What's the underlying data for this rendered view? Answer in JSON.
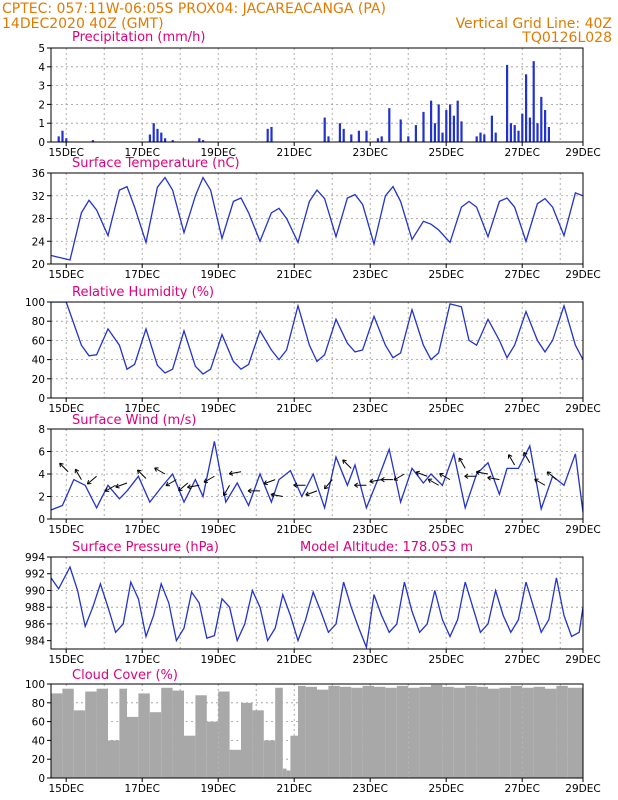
{
  "header": {
    "line1": "CPTEC:   057:11W-06:05S   PROX04: JACAREACANGA (PA)",
    "line2_left": "14DEC2020 40Z (GMT)",
    "line2_right": "Vertical Grid Line: 40Z",
    "line3_right": "TQ0126L028"
  },
  "x_tick_labels": [
    "15DEC",
    "17DEC",
    "19DEC",
    "21DEC",
    "23DEC",
    "25DEC",
    "27DEC",
    "29DEC"
  ],
  "colors": {
    "line": "#2233cc",
    "cloud": "#a8a8a8",
    "title": "#e0007a",
    "header": "#e07b00"
  },
  "chart_data": [
    {
      "type": "bar",
      "title": "Precipitation (mm/h)",
      "ylim": [
        0,
        5
      ],
      "yticks": [
        "0",
        "1",
        "2",
        "3",
        "4",
        "5"
      ],
      "x_unit": "days from 14DEC2020",
      "x": [
        0.2,
        0.3,
        0.4,
        1.1,
        2.6,
        2.7,
        2.8,
        2.9,
        3.0,
        3.2,
        3.9,
        4.0,
        5.7,
        5.8,
        7.2,
        7.3,
        7.6,
        7.7,
        7.9,
        8.1,
        8.3,
        8.6,
        8.7,
        8.9,
        9.2,
        9.4,
        9.6,
        9.8,
        10.0,
        10.1,
        10.2,
        10.3,
        10.4,
        10.5,
        10.6,
        10.7,
        10.8,
        11.2,
        11.3,
        11.4,
        11.6,
        11.7,
        12.0,
        12.1,
        12.2,
        12.3,
        12.4,
        12.5,
        12.6,
        12.7,
        12.8,
        12.9,
        13.0,
        13.1
      ],
      "values": [
        0.3,
        0.6,
        0.2,
        0.1,
        0.4,
        1.0,
        0.7,
        0.5,
        0.2,
        0.1,
        0.2,
        0.1,
        0.7,
        0.8,
        1.3,
        0.3,
        1.0,
        0.7,
        0.4,
        0.6,
        0.6,
        0.2,
        0.3,
        1.8,
        1.2,
        0.3,
        0.9,
        1.6,
        2.2,
        1.0,
        2.0,
        0.5,
        1.7,
        2.0,
        1.4,
        2.2,
        1.1,
        0.3,
        0.5,
        0.4,
        1.4,
        0.5,
        4.1,
        1.0,
        0.9,
        0.6,
        1.5,
        3.6,
        1.3,
        4.3,
        1.0,
        2.4,
        1.7,
        0.8
      ]
    },
    {
      "type": "line",
      "title": "Surface Temperature (nC)",
      "ylim": [
        20,
        36
      ],
      "yticks": [
        "20",
        "24",
        "28",
        "32",
        "36"
      ],
      "x_unit": "days from 14DEC2020",
      "x": [
        0.0,
        0.5,
        0.8,
        1.0,
        1.2,
        1.5,
        1.8,
        2.0,
        2.2,
        2.5,
        2.8,
        3.0,
        3.2,
        3.5,
        3.8,
        4.0,
        4.2,
        4.5,
        4.8,
        5.0,
        5.2,
        5.5,
        5.8,
        6.0,
        6.2,
        6.5,
        6.8,
        7.0,
        7.2,
        7.5,
        7.8,
        8.0,
        8.2,
        8.5,
        8.8,
        9.0,
        9.2,
        9.5,
        9.8,
        10.0,
        10.2,
        10.5,
        10.8,
        11.0,
        11.2,
        11.5,
        11.8,
        12.0,
        12.2,
        12.5,
        12.8,
        13.0,
        13.2,
        13.5,
        13.8,
        14.0
      ],
      "values": [
        21.5,
        20.7,
        29.0,
        31.2,
        29.5,
        25.0,
        33.0,
        33.6,
        30.0,
        23.8,
        33.5,
        35.2,
        33.0,
        25.5,
        32.0,
        35.2,
        33.0,
        24.5,
        31.0,
        31.6,
        29.0,
        24.0,
        29.0,
        29.8,
        28.0,
        23.8,
        31.0,
        33.0,
        31.5,
        24.8,
        31.6,
        32.2,
        30.5,
        23.5,
        32.0,
        33.6,
        31.0,
        24.3,
        27.5,
        27.0,
        26.0,
        23.8,
        30.0,
        31.0,
        30.0,
        24.8,
        31.0,
        31.6,
        30.0,
        24.0,
        30.6,
        31.5,
        30.0,
        25.0,
        32.5,
        32.0
      ]
    },
    {
      "type": "line",
      "title": "Relative Humidity (%)",
      "ylim": [
        0,
        100
      ],
      "yticks": [
        "0",
        "20",
        "40",
        "60",
        "80",
        "100"
      ],
      "x_unit": "days from 14DEC2020",
      "x": [
        0.0,
        0.4,
        0.8,
        1.0,
        1.2,
        1.5,
        1.8,
        2.0,
        2.2,
        2.5,
        2.8,
        3.0,
        3.2,
        3.5,
        3.8,
        4.0,
        4.2,
        4.5,
        4.8,
        5.0,
        5.2,
        5.5,
        5.8,
        6.0,
        6.2,
        6.5,
        6.8,
        7.0,
        7.2,
        7.5,
        7.8,
        8.0,
        8.2,
        8.5,
        8.8,
        9.0,
        9.2,
        9.5,
        9.8,
        10.0,
        10.2,
        10.5,
        10.8,
        11.0,
        11.2,
        11.5,
        11.8,
        12.0,
        12.2,
        12.5,
        12.8,
        13.0,
        13.2,
        13.5,
        13.8,
        14.0
      ],
      "values": [
        100,
        100,
        55,
        44,
        45,
        72,
        55,
        30,
        35,
        72,
        34,
        26,
        30,
        70,
        33,
        25,
        30,
        66,
        38,
        30,
        35,
        70,
        50,
        40,
        50,
        96,
        55,
        38,
        45,
        82,
        57,
        48,
        50,
        85,
        55,
        42,
        47,
        92,
        55,
        40,
        47,
        98,
        95,
        60,
        55,
        82,
        60,
        42,
        55,
        90,
        60,
        48,
        60,
        96,
        55,
        40
      ]
    },
    {
      "type": "line",
      "title": "Surface Wind (m/s)",
      "ylim": [
        0,
        8
      ],
      "yticks": [
        "0",
        "2",
        "4",
        "6",
        "8"
      ],
      "x_unit": "days from 14DEC2020",
      "x": [
        0.0,
        0.3,
        0.6,
        0.9,
        1.2,
        1.5,
        1.8,
        2.0,
        2.3,
        2.6,
        2.9,
        3.2,
        3.5,
        3.8,
        4.0,
        4.3,
        4.6,
        4.9,
        5.2,
        5.5,
        5.8,
        6.0,
        6.3,
        6.6,
        6.9,
        7.2,
        7.5,
        7.8,
        8.0,
        8.3,
        8.6,
        8.9,
        9.2,
        9.5,
        9.8,
        10.0,
        10.3,
        10.6,
        10.9,
        11.2,
        11.5,
        11.8,
        12.0,
        12.3,
        12.6,
        12.9,
        13.2,
        13.5,
        13.8,
        14.0
      ],
      "values": [
        0.8,
        1.2,
        3.5,
        3.0,
        1.0,
        3.0,
        1.8,
        2.5,
        3.8,
        1.5,
        2.8,
        4.0,
        1.5,
        3.5,
        2.0,
        6.9,
        1.5,
        3.2,
        1.2,
        4.0,
        1.5,
        3.5,
        4.3,
        2.0,
        4.0,
        1.0,
        5.5,
        3.0,
        4.8,
        1.0,
        3.5,
        6.2,
        1.5,
        4.5,
        3.2,
        4.0,
        3.0,
        5.8,
        1.0,
        4.0,
        5.0,
        2.2,
        4.5,
        4.5,
        6.5,
        0.9,
        3.8,
        3.0,
        5.8,
        0.6
      ],
      "arrows_x": [
        0.45,
        0.8,
        1.2,
        1.7,
        2.0,
        2.5,
        3.0,
        3.3,
        3.6,
        3.9,
        4.3,
        4.7,
        5.0,
        5.5,
        5.9,
        6.1,
        6.7,
        7.0,
        7.4,
        7.9,
        8.3,
        8.7,
        9.0,
        9.3,
        9.9,
        10.2,
        10.5,
        10.9,
        11.2,
        11.5,
        11.8,
        12.2,
        12.6,
        13.0,
        13.3
      ],
      "arrows_speed": [
        4.2,
        3.5,
        3.8,
        3.0,
        3.2,
        3.6,
        4.0,
        3.5,
        3.2,
        3.0,
        3.8,
        3.0,
        4.2,
        2.5,
        3.5,
        2.0,
        3.0,
        2.5,
        3.5,
        4.5,
        3.0,
        3.5,
        3.5,
        4.0,
        3.8,
        3.0,
        3.5,
        4.5,
        3.8,
        4.0,
        3.5,
        4.8,
        5.0,
        3.0,
        3.5
      ],
      "arrows_dir_deg": [
        135,
        120,
        220,
        210,
        200,
        135,
        150,
        210,
        220,
        190,
        210,
        240,
        190,
        180,
        200,
        170,
        180,
        200,
        230,
        135,
        180,
        190,
        180,
        210,
        160,
        150,
        150,
        120,
        180,
        170,
        170,
        120,
        120,
        150,
        140
      ]
    },
    {
      "type": "line",
      "title": "Surface Pressure (hPa)",
      "annotation": "Model Altitude: 178.053 m",
      "ylim": [
        983,
        994
      ],
      "yticks": [
        "984",
        "986",
        "988",
        "990",
        "992",
        "994"
      ],
      "x_unit": "days from 14DEC2020",
      "x": [
        0.0,
        0.2,
        0.5,
        0.7,
        0.9,
        1.1,
        1.3,
        1.5,
        1.7,
        1.9,
        2.1,
        2.3,
        2.5,
        2.7,
        2.9,
        3.1,
        3.3,
        3.5,
        3.7,
        3.9,
        4.1,
        4.3,
        4.5,
        4.7,
        4.9,
        5.1,
        5.3,
        5.5,
        5.7,
        5.9,
        6.1,
        6.3,
        6.5,
        6.7,
        6.9,
        7.1,
        7.3,
        7.5,
        7.7,
        7.9,
        8.1,
        8.3,
        8.5,
        8.7,
        8.9,
        9.1,
        9.3,
        9.5,
        9.7,
        9.9,
        10.1,
        10.3,
        10.5,
        10.7,
        10.9,
        11.1,
        11.3,
        11.5,
        11.7,
        11.9,
        12.1,
        12.3,
        12.5,
        12.7,
        12.9,
        13.1,
        13.3,
        13.5,
        13.7,
        13.9,
        14.0
      ],
      "values": [
        991.5,
        990.2,
        992.8,
        990.0,
        985.7,
        988.0,
        990.8,
        988.0,
        985.0,
        986.0,
        991.0,
        989.0,
        984.5,
        987.0,
        990.8,
        988.5,
        984.0,
        985.5,
        989.8,
        988.5,
        984.3,
        984.6,
        989.0,
        988.0,
        984.0,
        986.0,
        990.0,
        988.0,
        984.0,
        985.5,
        989.5,
        987.0,
        984.0,
        986.5,
        989.8,
        987.5,
        985.0,
        986.0,
        991.0,
        988.0,
        985.5,
        983.2,
        989.5,
        987.0,
        985.0,
        986.0,
        991.0,
        987.5,
        985.0,
        986.0,
        990.0,
        986.5,
        984.5,
        986.5,
        991.0,
        988.0,
        985.0,
        986.0,
        990.0,
        987.0,
        985.0,
        986.5,
        991.0,
        988.0,
        985.0,
        986.5,
        991.5,
        987.0,
        984.5,
        985.0,
        988.0
      ]
    },
    {
      "type": "area",
      "title": "Cloud Cover (%)",
      "ylim": [
        0,
        100
      ],
      "yticks": [
        "0",
        "20",
        "40",
        "60",
        "80",
        "100"
      ],
      "x_unit": "days from 14DEC2020",
      "x": [
        0.0,
        0.3,
        0.6,
        0.9,
        1.2,
        1.5,
        1.8,
        2.0,
        2.3,
        2.6,
        2.9,
        3.2,
        3.5,
        3.8,
        4.1,
        4.4,
        4.7,
        5.0,
        5.3,
        5.6,
        5.9,
        6.1,
        6.2,
        6.3,
        6.5,
        6.7,
        7.0,
        7.3,
        7.6,
        7.9,
        8.2,
        8.5,
        8.8,
        9.1,
        9.4,
        9.7,
        10.0,
        10.3,
        10.6,
        10.9,
        11.2,
        11.5,
        11.8,
        12.1,
        12.4,
        12.7,
        13.0,
        13.3,
        13.6,
        14.0
      ],
      "values": [
        90,
        95,
        72,
        92,
        95,
        40,
        95,
        65,
        90,
        70,
        96,
        93,
        45,
        88,
        60,
        92,
        30,
        80,
        72,
        40,
        96,
        10,
        8,
        45,
        98,
        97,
        94,
        98,
        97,
        96,
        98,
        97,
        96,
        98,
        96,
        97,
        99,
        97,
        96,
        98,
        97,
        95,
        96,
        98,
        96,
        97,
        95,
        98,
        96,
        95
      ]
    }
  ]
}
